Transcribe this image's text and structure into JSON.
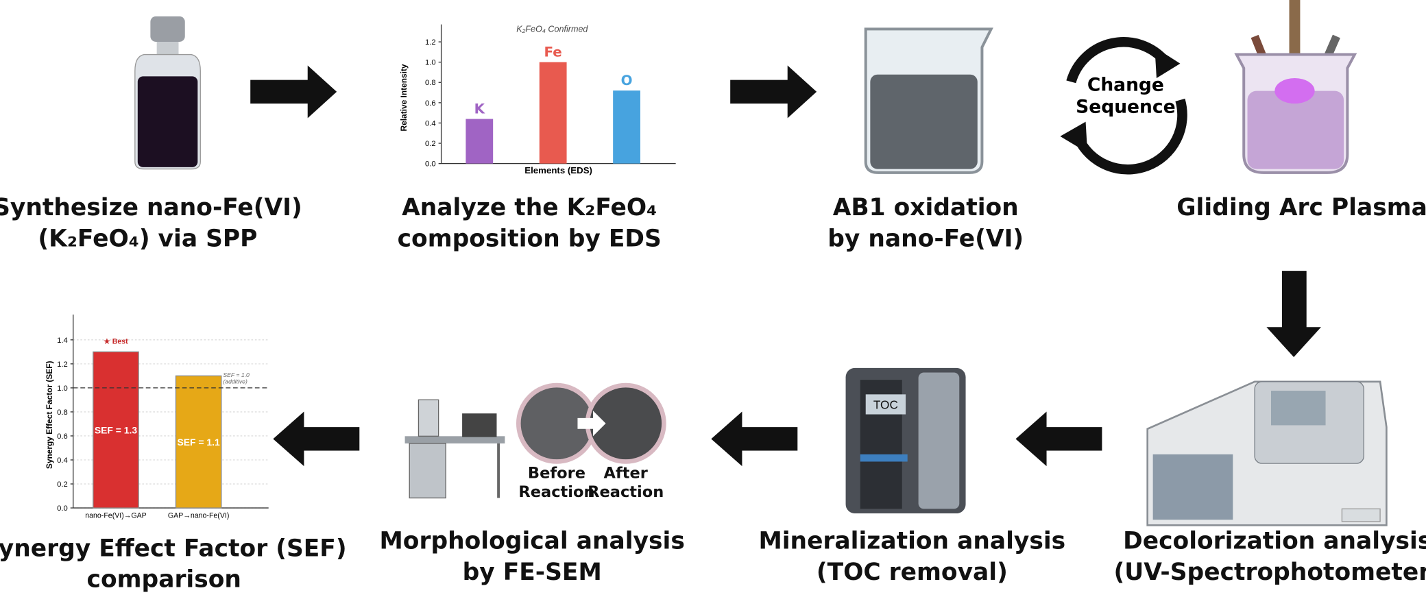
{
  "steps": [
    {
      "label": [
        "Synthesize nano-Fe(VI)",
        "(K₂FeO₄) via SPP"
      ]
    },
    {
      "label": [
        "Analyze the K₂FeO₄",
        "composition by EDS"
      ]
    },
    {
      "label": [
        "AB1 oxidation",
        "by nano-Fe(VI)"
      ]
    },
    {
      "label": [
        "Gliding Arc Plasma"
      ]
    },
    {
      "label": [
        "Decolorization analysis",
        "(UV-Spectrophotometer)"
      ]
    },
    {
      "label": [
        "Mineralization analysis",
        "(TOC removal)"
      ]
    },
    {
      "label": [
        "Morphological analysis",
        "by FE-SEM"
      ]
    },
    {
      "label": [
        "Synergy Effect Factor (SEF)",
        "comparison"
      ]
    }
  ],
  "cycle_label": [
    "Change",
    "Sequence"
  ],
  "toc_screen": "TOC",
  "sem_labels": [
    [
      "Before",
      "Reaction"
    ],
    [
      "After",
      "Reaction"
    ]
  ],
  "eds_chart": {
    "type": "bar",
    "title": "K₂FeO₄ Confirmed",
    "y_label": "Relative Intensity",
    "x_label": "Elements (EDS)",
    "categories": [
      "K",
      "Fe",
      "O"
    ],
    "values": [
      0.44,
      1.0,
      0.72
    ],
    "colors": [
      "#a064c4",
      "#e85a4f",
      "#47a3df"
    ],
    "ylim": [
      0,
      1.3
    ],
    "yticks": [
      {
        "value": 0,
        "label": "0.0"
      },
      {
        "value": 0.2,
        "label": "0.2"
      },
      {
        "value": 0.4,
        "label": "0.4"
      },
      {
        "value": 0.6,
        "label": "0.6"
      },
      {
        "value": 0.8,
        "label": "0.8"
      },
      {
        "value": 1.0,
        "label": "1.0"
      },
      {
        "value": 1.2,
        "label": "1.2"
      }
    ]
  },
  "sef_chart": {
    "type": "bar",
    "y_label": "Synergy Effect Factor (SEF)",
    "categories": [
      "nano-Fe(VI)→GAP",
      "GAP→nano-Fe(VI)"
    ],
    "values": [
      1.3,
      1.1
    ],
    "value_labels": [
      "SEF = 1.3",
      "SEF = 1.1"
    ],
    "colors": [
      "#d93030",
      "#e6a817"
    ],
    "annotation": "★ Best",
    "reference": {
      "value": 1.0,
      "label": [
        "SEF = 1.0",
        "(additive)"
      ]
    },
    "grid": true,
    "ylim": [
      0,
      1.55
    ],
    "yticks": [
      {
        "value": 0,
        "label": "0.0"
      },
      {
        "value": 0.2,
        "label": "0.2"
      },
      {
        "value": 0.4,
        "label": "0.4"
      },
      {
        "value": 0.6,
        "label": "0.6"
      },
      {
        "value": 0.8,
        "label": "0.8"
      },
      {
        "value": 1.0,
        "label": "1.0"
      },
      {
        "value": 1.2,
        "label": "1.2"
      },
      {
        "value": 1.4,
        "label": "1.4"
      }
    ]
  }
}
